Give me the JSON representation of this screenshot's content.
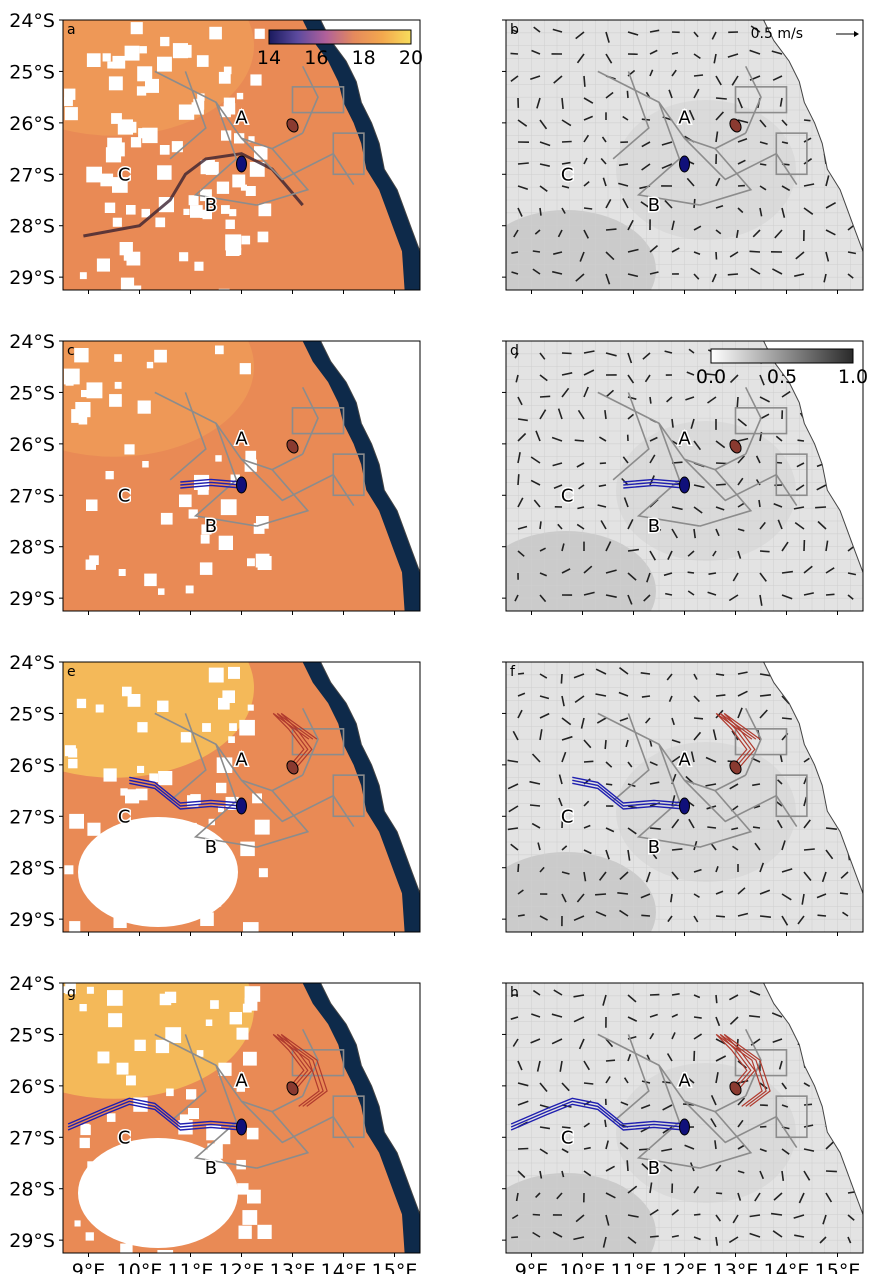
{
  "figure": {
    "lat_labels": [
      "24°S",
      "25°S",
      "26°S",
      "27°S",
      "28°S",
      "29°S"
    ],
    "lon_labels": [
      "9°E",
      "10°E",
      "11°E",
      "12°E",
      "13°E",
      "14°E",
      "15°E"
    ],
    "extent": {
      "lon": [
        8.5,
        15.5
      ],
      "lat": [
        -29.25,
        -24.0
      ]
    },
    "panels": [
      {
        "id": "a",
        "letter": "a",
        "kind": "sst",
        "row": 0,
        "col": 0,
        "trail": 0.0
      },
      {
        "id": "b",
        "letter": "b",
        "kind": "current",
        "row": 0,
        "col": 1,
        "trail": 0.0
      },
      {
        "id": "c",
        "letter": "c",
        "kind": "sst",
        "row": 1,
        "col": 0,
        "trail": 0.3
      },
      {
        "id": "d",
        "letter": "d",
        "kind": "current",
        "row": 1,
        "col": 1,
        "trail": 0.3
      },
      {
        "id": "e",
        "letter": "e",
        "kind": "sst",
        "row": 2,
        "col": 0,
        "trail": 0.7
      },
      {
        "id": "f",
        "letter": "f",
        "kind": "current",
        "row": 2,
        "col": 1,
        "trail": 0.7
      },
      {
        "id": "g",
        "letter": "g",
        "kind": "sst",
        "row": 3,
        "col": 0,
        "trail": 1.0
      },
      {
        "id": "h",
        "letter": "h",
        "kind": "current",
        "row": 3,
        "col": 1,
        "trail": 1.0
      }
    ],
    "region_labels": [
      {
        "text": "A",
        "lon": 12.0,
        "lat": -25.9
      },
      {
        "text": "B",
        "lon": 11.4,
        "lat": -27.6
      },
      {
        "text": "C",
        "lon": 9.7,
        "lat": -27.0
      }
    ],
    "sst_colorbar": {
      "ticks": [
        "14",
        "16",
        "18",
        "20"
      ],
      "min": 14,
      "max": 20,
      "colors": [
        "#1a1a5e",
        "#5c4a9e",
        "#b0609a",
        "#e58a5c",
        "#f3a84e",
        "#f7dd5c"
      ]
    },
    "speed_colorbar": {
      "ticks": [
        "0.0",
        "0.5",
        "1.0"
      ],
      "min": 0.0,
      "max": 1.0
    },
    "quiver_key": "0.5 m/s",
    "colors": {
      "ocean_dark": "#0e2a4a",
      "coast": "#444444",
      "release_red": "#b03a2e",
      "release_blue": "#1f1fb0",
      "survey_line": "#8c8c8c"
    }
  }
}
